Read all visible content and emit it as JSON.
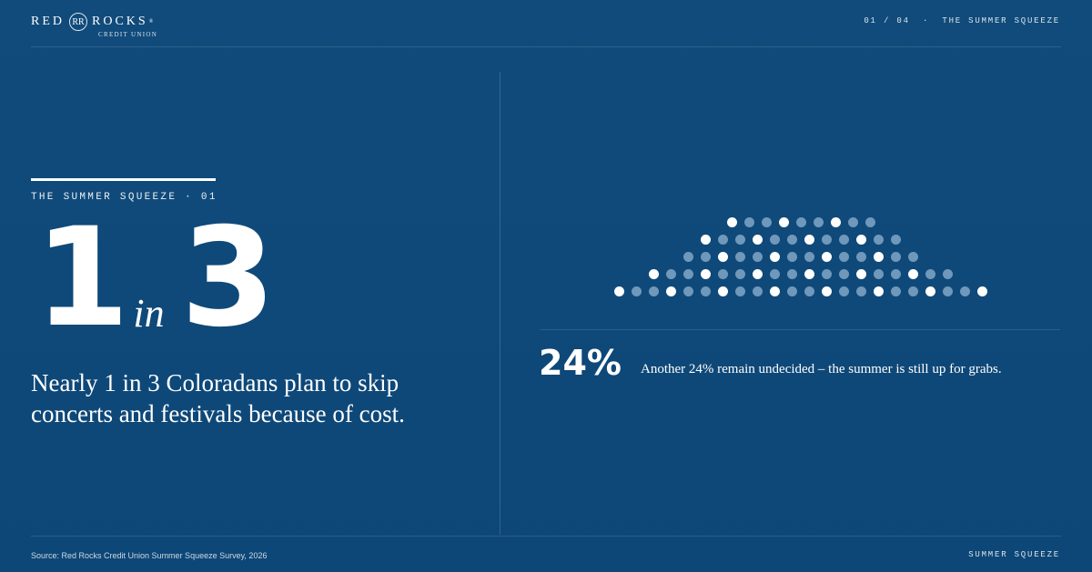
{
  "brand": {
    "logo_left": "RED",
    "logo_mark": "RR",
    "logo_right": "ROCKS",
    "logo_registered": "®",
    "logo_sub": "CREDIT UNION"
  },
  "header": {
    "page_indicator": "01 / 04",
    "separator": "·",
    "section_title": "THE SUMMER SQUEEZE"
  },
  "hero": {
    "eyebrow": "THE SUMMER SQUEEZE · 01",
    "left_number": "1",
    "middle_word": "in",
    "right_number": "3",
    "description": "Nearly 1 in 3 Coloradans plan to skip concerts and festivals because of cost."
  },
  "insight": {
    "percent": "24%",
    "text": "Another 24% remain undecided – the summer is still up for grabs."
  },
  "footer": {
    "source": "Source: Red Rocks Credit Union Summer Squeeze Survey, 2026",
    "label": "SUMMER SQUEEZE"
  },
  "visual": {
    "highlight_color": "#ffffff",
    "muted_color": "#6f98bb",
    "background_color": "#0f4a79",
    "dot_rows": [
      "wmmwmmwmm",
      "wmmwmmwmmwmm",
      "mmwmmwmmwmmwmm",
      "wmmwmmwmmwmmwmmwmm",
      "wmmwmmwmmwmmwmmwmmwmmw"
    ]
  }
}
